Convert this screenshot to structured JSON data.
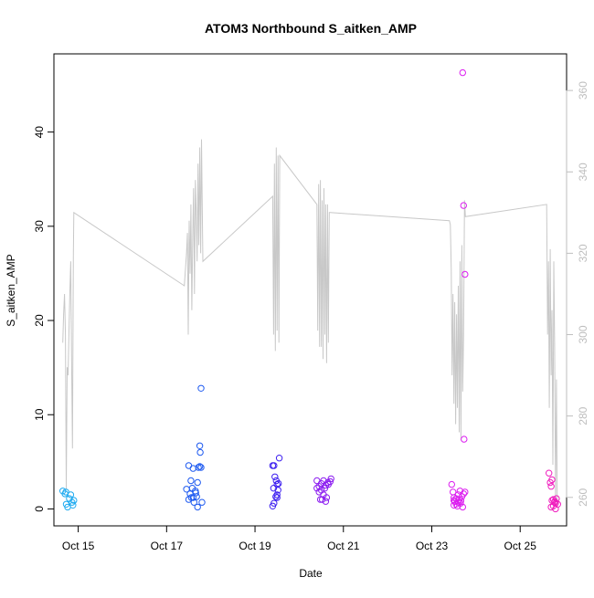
{
  "chart_data": {
    "type": "scatter",
    "title": "ATOM3 Northbound S_aitken_AMP",
    "xlabel": "Date",
    "ylabel": "S_aitken_AMP",
    "x_ticks": [
      "Oct 15",
      "Oct 17",
      "Oct 19",
      "Oct 21",
      "Oct 23",
      "Oct 25"
    ],
    "x_tick_values": [
      15,
      17,
      19,
      21,
      23,
      25
    ],
    "xlim": [
      14.45,
      26.05
    ],
    "ylim": [
      -1.8,
      48.3
    ],
    "y_ticks": [
      0,
      10,
      20,
      30,
      40
    ],
    "y2lim": [
      253,
      369
    ],
    "y2_ticks": [
      260,
      280,
      300,
      320,
      340,
      360
    ],
    "grid": false,
    "colors": {
      "axis": "#000000",
      "secondary_axis": "#bebebe",
      "line": "#c8c8c8"
    },
    "scatter_series": [
      {
        "color": "#1eaaf0",
        "points": [
          [
            14.65,
            1.9
          ],
          [
            14.7,
            1.6
          ],
          [
            14.73,
            0.5
          ],
          [
            14.76,
            0.2
          ],
          [
            14.8,
            1.1
          ],
          [
            14.83,
            1.5
          ],
          [
            14.86,
            0.7
          ],
          [
            14.88,
            0.4
          ],
          [
            14.9,
            0.9
          ],
          [
            14.72,
            1.8
          ]
        ]
      },
      {
        "color": "#1e5af0",
        "points": [
          [
            17.5,
            4.6
          ],
          [
            17.55,
            3.0
          ],
          [
            17.5,
            1.0
          ],
          [
            17.53,
            1.6
          ],
          [
            17.58,
            2.2
          ],
          [
            17.6,
            1.2
          ],
          [
            17.62,
            0.7
          ],
          [
            17.65,
            1.9
          ],
          [
            17.68,
            1.3
          ],
          [
            17.7,
            2.8
          ],
          [
            17.72,
            4.4
          ],
          [
            17.75,
            4.5
          ],
          [
            17.78,
            4.4
          ],
          [
            17.78,
            12.8
          ],
          [
            17.75,
            6.7
          ],
          [
            17.76,
            6.0
          ],
          [
            17.8,
            0.7
          ],
          [
            17.7,
            0.2
          ],
          [
            17.45,
            2.1
          ],
          [
            17.6,
            4.3
          ],
          [
            17.66,
            1.7
          ],
          [
            17.56,
            1.2
          ]
        ]
      },
      {
        "color": "#3c1ef0",
        "points": [
          [
            19.4,
            4.6
          ],
          [
            19.43,
            4.6
          ],
          [
            19.45,
            3.4
          ],
          [
            19.48,
            3.0
          ],
          [
            19.5,
            2.6
          ],
          [
            19.52,
            2.0
          ],
          [
            19.55,
            5.4
          ],
          [
            19.5,
            1.2
          ],
          [
            19.47,
            1.3
          ],
          [
            19.43,
            0.6
          ],
          [
            19.4,
            0.3
          ],
          [
            19.5,
            1.5
          ],
          [
            19.42,
            2.2
          ],
          [
            19.53,
            2.7
          ]
        ]
      },
      {
        "color": "#8c1ef0",
        "points": [
          [
            20.4,
            3.0
          ],
          [
            20.45,
            2.4
          ],
          [
            20.5,
            2.7
          ],
          [
            20.55,
            3.0
          ],
          [
            20.6,
            2.5
          ],
          [
            20.65,
            2.8
          ],
          [
            20.7,
            2.9
          ],
          [
            20.72,
            3.2
          ],
          [
            20.48,
            1.0
          ],
          [
            20.52,
            1.0
          ],
          [
            20.55,
            1.5
          ],
          [
            20.6,
            0.8
          ],
          [
            20.62,
            1.2
          ],
          [
            20.45,
            1.8
          ],
          [
            20.5,
            2.0
          ],
          [
            20.58,
            2.2
          ],
          [
            20.66,
            2.6
          ],
          [
            20.4,
            2.2
          ]
        ]
      },
      {
        "color": "#dc1ef0",
        "points": [
          [
            23.45,
            2.6
          ],
          [
            23.48,
            1.8
          ],
          [
            23.5,
            1.2
          ],
          [
            23.52,
            0.8
          ],
          [
            23.55,
            0.5
          ],
          [
            23.58,
            0.3
          ],
          [
            23.6,
            1.5
          ],
          [
            23.62,
            1.0
          ],
          [
            23.65,
            0.6
          ],
          [
            23.68,
            1.3
          ],
          [
            23.7,
            0.2
          ],
          [
            23.72,
            1.6
          ],
          [
            23.75,
            1.8
          ],
          [
            23.7,
            46.3
          ],
          [
            23.72,
            32.2
          ],
          [
            23.75,
            24.9
          ],
          [
            23.73,
            7.4
          ],
          [
            23.5,
            0.4
          ],
          [
            23.55,
            1.1
          ],
          [
            23.6,
            0.7
          ],
          [
            23.64,
            1.9
          ],
          [
            23.66,
            0.9
          ],
          [
            23.5,
            0.9
          ]
        ]
      },
      {
        "color": "#f01ebe",
        "points": [
          [
            25.65,
            3.8
          ],
          [
            25.68,
            2.8
          ],
          [
            25.7,
            2.4
          ],
          [
            25.72,
            3.1
          ],
          [
            25.75,
            1.0
          ],
          [
            25.78,
            0.8
          ],
          [
            25.8,
            0.6
          ],
          [
            25.82,
            1.1
          ],
          [
            25.85,
            0.5
          ],
          [
            25.7,
            0.2
          ],
          [
            25.75,
            0.3
          ],
          [
            25.8,
            0.0
          ],
          [
            25.72,
            0.9
          ],
          [
            25.78,
            0.7
          ]
        ]
      }
    ],
    "line_series": {
      "axis": "secondary",
      "color": "#c8c8c8",
      "points": [
        [
          14.65,
          298
        ],
        [
          14.67,
          305
        ],
        [
          14.69,
          310
        ],
        [
          14.71,
          300
        ],
        [
          14.73,
          262
        ],
        [
          14.75,
          292
        ],
        [
          14.77,
          290
        ],
        [
          14.79,
          300
        ],
        [
          14.81,
          310
        ],
        [
          14.83,
          318
        ],
        [
          14.85,
          295
        ],
        [
          14.87,
          272
        ],
        [
          14.89,
          320
        ],
        [
          14.9,
          330
        ],
        [
          17.4,
          312
        ],
        [
          17.45,
          320
        ],
        [
          17.47,
          325
        ],
        [
          17.49,
          300
        ],
        [
          17.51,
          328
        ],
        [
          17.53,
          315
        ],
        [
          17.55,
          332
        ],
        [
          17.57,
          306
        ],
        [
          17.59,
          324
        ],
        [
          17.61,
          336
        ],
        [
          17.63,
          310
        ],
        [
          17.65,
          338
        ],
        [
          17.67,
          330
        ],
        [
          17.69,
          318
        ],
        [
          17.71,
          342
        ],
        [
          17.73,
          322
        ],
        [
          17.75,
          346
        ],
        [
          17.77,
          320
        ],
        [
          17.79,
          348
        ],
        [
          17.82,
          318
        ],
        [
          19.4,
          334
        ],
        [
          19.42,
          300
        ],
        [
          19.44,
          342
        ],
        [
          19.46,
          296
        ],
        [
          19.48,
          346
        ],
        [
          19.5,
          301
        ],
        [
          19.52,
          344
        ],
        [
          19.54,
          298
        ],
        [
          19.56,
          344
        ],
        [
          20.4,
          332
        ],
        [
          20.42,
          301
        ],
        [
          20.44,
          337
        ],
        [
          20.46,
          297
        ],
        [
          20.48,
          338
        ],
        [
          20.5,
          297
        ],
        [
          20.52,
          333
        ],
        [
          20.54,
          294
        ],
        [
          20.56,
          336
        ],
        [
          20.58,
          300
        ],
        [
          20.6,
          332
        ],
        [
          20.62,
          293
        ],
        [
          20.64,
          332
        ],
        [
          20.66,
          298
        ],
        [
          20.68,
          330
        ],
        [
          20.7,
          330
        ],
        [
          23.4,
          328
        ],
        [
          23.42,
          327
        ],
        [
          23.44,
          316
        ],
        [
          23.46,
          290
        ],
        [
          23.48,
          310
        ],
        [
          23.5,
          283
        ],
        [
          23.52,
          308
        ],
        [
          23.54,
          278
        ],
        [
          23.56,
          305
        ],
        [
          23.58,
          282
        ],
        [
          23.6,
          312
        ],
        [
          23.62,
          276
        ],
        [
          23.64,
          318
        ],
        [
          23.66,
          274
        ],
        [
          23.68,
          322
        ],
        [
          23.7,
          286
        ],
        [
          23.72,
          300
        ],
        [
          23.74,
          333
        ],
        [
          23.76,
          329
        ],
        [
          25.6,
          332
        ],
        [
          25.62,
          300
        ],
        [
          25.64,
          318
        ],
        [
          25.66,
          282
        ],
        [
          25.68,
          321
        ],
        [
          25.7,
          290
        ],
        [
          25.72,
          306
        ],
        [
          25.74,
          268
        ],
        [
          25.76,
          318
        ],
        [
          25.78,
          298
        ],
        [
          25.8,
          259
        ],
        [
          25.82,
          289
        ],
        [
          25.84,
          258
        ]
      ]
    }
  }
}
